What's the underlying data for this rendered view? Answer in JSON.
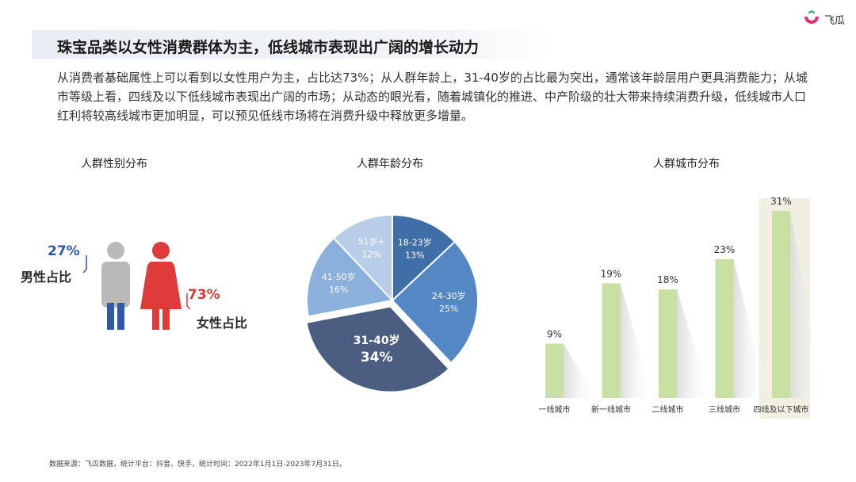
{
  "logo": {
    "text": "飞瓜"
  },
  "page_title": "珠宝品类以女性消费群体为主，低线城市表现出广阔的增长动力",
  "description": "从消费者基础属性上可以看到以女性用户为主，占比达73%；从人群年龄上，31-40岁的占比最为突出，通常该年龄层用户更具消费能力；从城市等级上看，四线及以下低线城市表现出广阔的市场；从动态的眼光看，随着城镇化的推进、中产阶级的壮大带来持续消费升级，低线城市人口红利将较高线城市更加明显，可以预见低线市场将在消费升级中释放更多增量。",
  "footnote": "数据来源：飞瓜数据，统计平台：抖音、快手，统计时间：2022年1月1日-2023年7月31日。",
  "colors": {
    "male": "#b9b9b9",
    "male_legs": "#2e5aa8",
    "female": "#e03b3b",
    "male_pct": "#2e5aa8",
    "female_pct": "#d83a3a",
    "bar": "#c9e0a3",
    "bar_highlight_bg": "#f1efe2"
  },
  "gender": {
    "title": "人群性别分布",
    "male": {
      "pct": "27%",
      "label": "男性占比"
    },
    "female": {
      "pct": "73%",
      "label": "女性占比"
    }
  },
  "chart_data": [
    {
      "type": "pie",
      "title": "人群年龄分布",
      "slices": [
        {
          "label": "18-23岁",
          "value": 13,
          "display": "13%",
          "color": "#3f6fa6"
        },
        {
          "label": "24-30岁",
          "value": 25,
          "display": "25%",
          "color": "#5388c4"
        },
        {
          "label": "31-40岁",
          "value": 34,
          "display": "34%",
          "color": "#4b5d80"
        },
        {
          "label": "41-50岁",
          "value": 16,
          "display": "16%",
          "color": "#8bb0dc"
        },
        {
          "label": "51岁+",
          "value": 12,
          "display": "12%",
          "color": "#b8cde7"
        }
      ]
    },
    {
      "type": "bar",
      "title": "人群城市分布",
      "categories": [
        "一线城市",
        "新一线城市",
        "二线城市",
        "三线城市",
        "四线及以下城市"
      ],
      "values": [
        9,
        19,
        18,
        23,
        31
      ],
      "labels": [
        "9%",
        "19%",
        "18%",
        "23%",
        "31%"
      ],
      "highlight": "四线及以下城市"
    }
  ]
}
